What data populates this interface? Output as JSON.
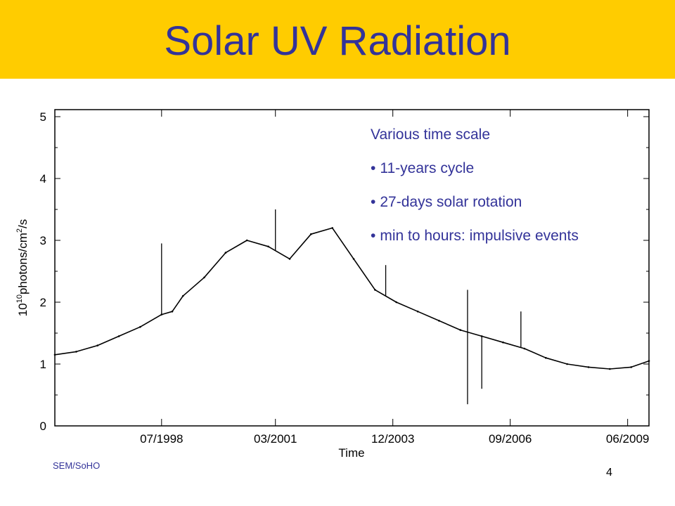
{
  "slide": {
    "title": "Solar UV Radiation",
    "source": "SEM/SoHO",
    "page_number": "4",
    "notes_heading": "Various time scale",
    "notes": [
      "11-years cycle",
      "27-days solar rotation",
      "min to hours: impulsive events"
    ],
    "bullet_char": "•",
    "colors": {
      "header": "#FFCC00",
      "title_text": "#333399",
      "series_line": "#000000"
    }
  },
  "chart_data": {
    "type": "line",
    "title": "",
    "xlabel": "Time",
    "ylabel": "10^10 photons/cm^2/s",
    "ylabel_parts": {
      "base": "10",
      "exp1": "10",
      "mid": "photons/cm",
      "exp2": "2",
      "tail": "/s"
    },
    "xlim": [
      "1996-01",
      "2009-12"
    ],
    "ylim": [
      0,
      5
    ],
    "x_ticks": [
      "07/1998",
      "03/2001",
      "12/2003",
      "09/2006",
      "06/2009"
    ],
    "y_ticks": [
      "0",
      "1",
      "2",
      "3",
      "4",
      "5"
    ],
    "grid": false,
    "series": [
      {
        "x": [
          "1996-01",
          "1996-07",
          "1997-01",
          "1997-07",
          "1998-01",
          "1998-07",
          "1998-10",
          "1999-01",
          "1999-07",
          "2000-01",
          "2000-07",
          "2001-01",
          "2001-07",
          "2002-01",
          "2002-07",
          "2003-01",
          "2003-07",
          "2004-01",
          "2004-07",
          "2005-01",
          "2005-07",
          "2006-01",
          "2006-07",
          "2007-01",
          "2007-07",
          "2008-01",
          "2008-07",
          "2009-01",
          "2009-07",
          "2009-12"
        ],
        "y": [
          1.15,
          1.2,
          1.3,
          1.45,
          1.6,
          1.8,
          1.85,
          2.1,
          2.4,
          2.8,
          3.0,
          2.9,
          2.7,
          3.1,
          3.2,
          2.7,
          2.2,
          2.0,
          1.85,
          1.7,
          1.55,
          1.45,
          1.35,
          1.25,
          1.1,
          1.0,
          0.95,
          0.92,
          0.95,
          1.05
        ]
      }
    ],
    "spikes": [
      {
        "x": "1998-07",
        "y": 2.95
      },
      {
        "x": "2001-03",
        "y": 3.5
      },
      {
        "x": "2003-10",
        "y": 2.6
      },
      {
        "x": "2005-09",
        "y": 2.2
      },
      {
        "x": "2005-09",
        "y": 0.35
      },
      {
        "x": "2006-01",
        "y": 0.6
      },
      {
        "x": "2006-12",
        "y": 1.85
      }
    ]
  }
}
